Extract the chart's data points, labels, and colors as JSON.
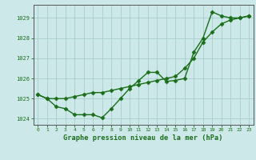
{
  "title": "Graphe pression niveau de la mer (hPa)",
  "x_values": [
    0,
    1,
    2,
    3,
    4,
    5,
    6,
    7,
    8,
    9,
    10,
    11,
    12,
    13,
    14,
    15,
    16,
    17,
    18,
    19,
    20,
    21,
    22,
    23
  ],
  "line1_y": [
    1025.2,
    1025.0,
    1025.0,
    1025.0,
    1025.1,
    1025.2,
    1025.3,
    1025.3,
    1025.4,
    1025.5,
    1025.6,
    1025.7,
    1025.8,
    1025.9,
    1026.0,
    1026.1,
    1026.5,
    1027.0,
    1027.8,
    1028.3,
    1028.7,
    1028.9,
    1029.0,
    1029.1
  ],
  "line2_y": [
    1025.2,
    1025.0,
    1024.6,
    1024.5,
    1024.2,
    1024.2,
    1024.2,
    1024.05,
    1024.5,
    1025.0,
    1025.5,
    1025.9,
    1026.3,
    1026.3,
    1025.85,
    1025.9,
    1026.0,
    1027.3,
    1028.0,
    1029.3,
    1029.1,
    1029.0,
    1029.0,
    1029.1
  ],
  "ylim": [
    1023.7,
    1029.65
  ],
  "xlim": [
    -0.5,
    23.5
  ],
  "yticks": [
    1024,
    1025,
    1026,
    1027,
    1028,
    1029
  ],
  "xticks": [
    0,
    1,
    2,
    3,
    4,
    5,
    6,
    7,
    8,
    9,
    10,
    11,
    12,
    13,
    14,
    15,
    16,
    17,
    18,
    19,
    20,
    21,
    22,
    23
  ],
  "line_color": "#1a6e1a",
  "marker_color": "#1a6e1a",
  "bg_color": "#cce8e8",
  "grid_color": "#a8cccc",
  "title_color": "#1a6e1a",
  "axis_color": "#555555",
  "tick_color": "#1a6e1a",
  "line_width": 1.0,
  "marker_size": 2.5
}
